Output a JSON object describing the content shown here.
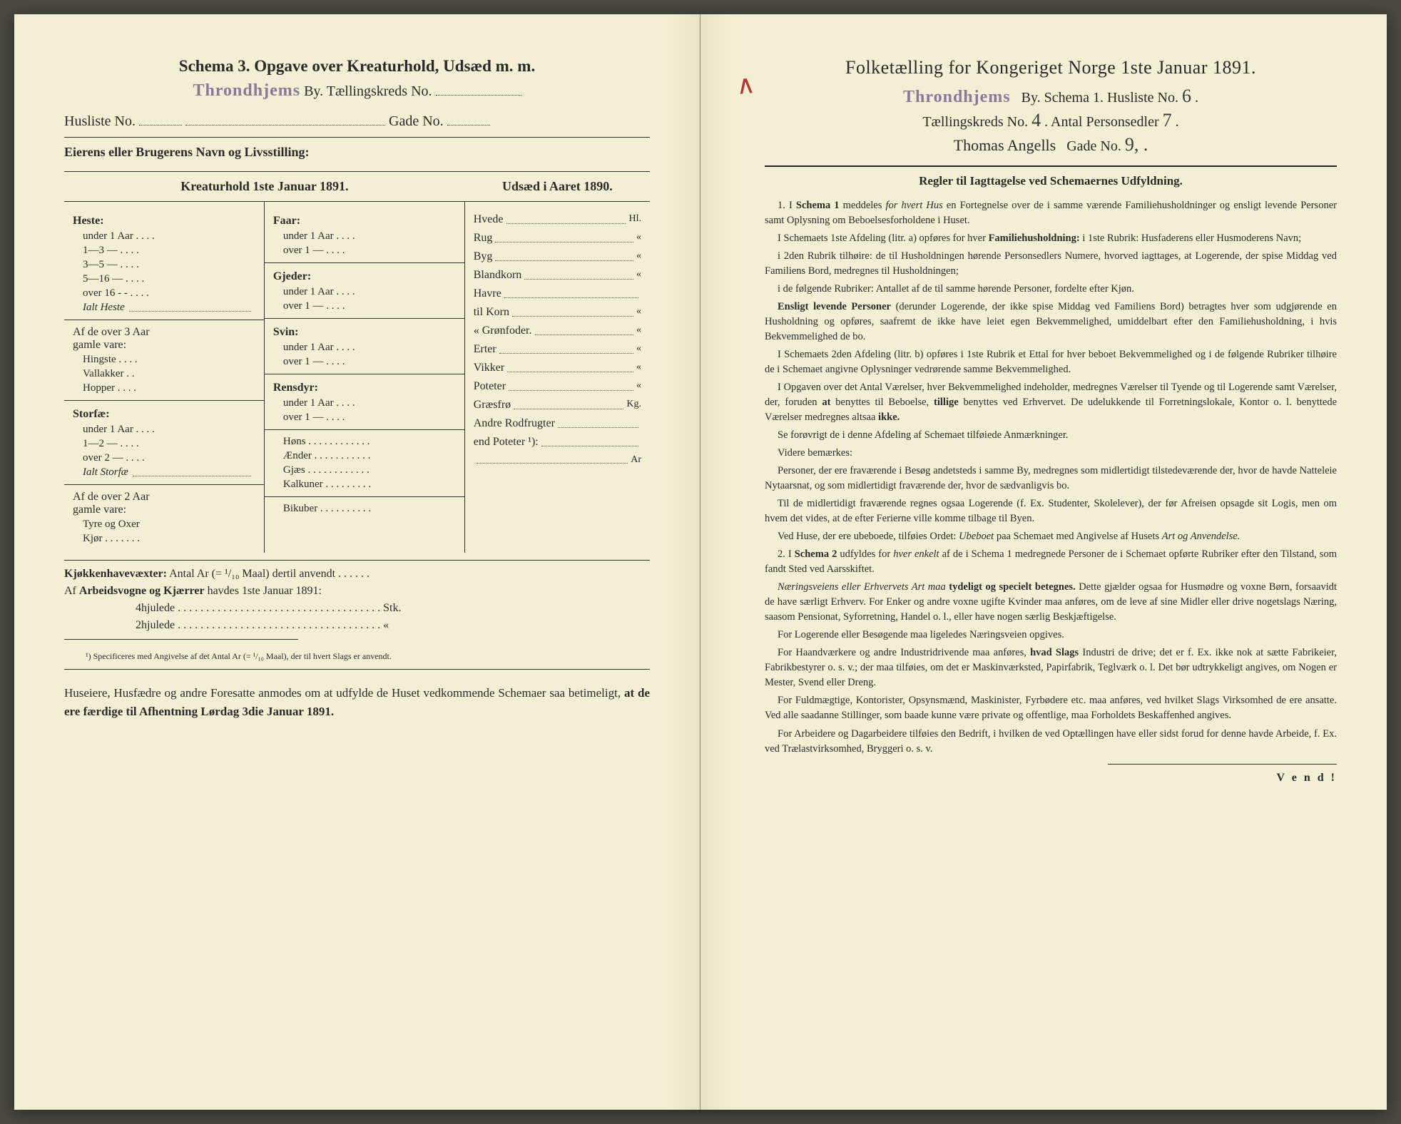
{
  "left": {
    "title": "Schema 3.   Opgave over Kreaturhold, Udsæd m. m.",
    "stamp": "Throndhjems",
    "by_label": "By.  Tællingskreds No.",
    "husliste_label": "Husliste No.",
    "gade_label": "Gade No.",
    "owner": "Eierens eller Brugerens Navn og Livsstilling:",
    "head_kreatur": "Kreaturhold 1ste Januar 1891.",
    "head_udsaed": "Udsæd i Aaret 1890.",
    "col1": {
      "heste": "Heste:",
      "heste_items": [
        "under 1 Aar . . . .",
        "1—3  —  . . . .",
        "3—5  —  . . . .",
        "5—16 —  . . . .",
        "over 16 - -  . . . ."
      ],
      "ialt_heste": "Ialt Heste",
      "af3aar": "Af de over 3 Aar",
      "gamle": "gamle vare:",
      "gamle_items": [
        "Hingste . . . .",
        "Vallakker . .",
        "Hopper . . . ."
      ],
      "storfae": "Storfæ:",
      "storfae_items": [
        "under 1 Aar . . . .",
        "1—2  —  . . . .",
        "over 2  —  . . . ."
      ],
      "ialt_storfae": "Ialt Storfæ",
      "af2aar": "Af de over 2 Aar",
      "gamle2": "gamle vare:",
      "gamle2_items": [
        "Tyre og Oxer",
        "Kjør . . . . . . ."
      ]
    },
    "col2": {
      "faar": "Faar:",
      "faar_items": [
        "under 1 Aar . . . .",
        "over 1  —  . . . ."
      ],
      "gjeder": "Gjeder:",
      "gjeder_items": [
        "under 1 Aar . . . .",
        "over 1  —  . . . ."
      ],
      "svin": "Svin:",
      "svin_items": [
        "under 1 Aar . . . .",
        "over 1  —  . . . ."
      ],
      "rensdyr": "Rensdyr:",
      "rensdyr_items": [
        "under 1 Aar . . . .",
        "over 1  —  . . . ."
      ],
      "hons": "Høns . . . . . . . . . . . .",
      "aender": "Ænder . . . . . . . . . . .",
      "gjaes": "Gjæs . . . . . . . . . . . .",
      "kalkuner": "Kalkuner . . . . . . . . .",
      "bikuber": "Bikuber . . . . . . . . . ."
    },
    "col3": {
      "items": [
        {
          "l": "Hvede",
          "u": "Hl."
        },
        {
          "l": "Rug",
          "u": "«"
        },
        {
          "l": "Byg",
          "u": "«"
        },
        {
          "l": "Blandkorn",
          "u": "«"
        },
        {
          "l": "Havre",
          "u": ""
        },
        {
          "l": "    til Korn",
          "u": "«"
        },
        {
          "l": "    «  Grønfoder.",
          "u": "«"
        },
        {
          "l": "Erter",
          "u": "«"
        },
        {
          "l": "Vikker",
          "u": "«"
        },
        {
          "l": "Poteter",
          "u": "«"
        },
        {
          "l": "Græsfrø",
          "u": "Kg."
        },
        {
          "l": "Andre Rodfrugter",
          "u": ""
        },
        {
          "l": "   end Poteter ¹):",
          "u": ""
        },
        {
          "l": "",
          "u": "Ar"
        }
      ]
    },
    "kjokken": "Kjøkkenhavevæxter:  Antal Ar (= ¹/₁₀ Maal) dertil anvendt . . . . . .",
    "arbeids": "Af Arbeidsvogne og Kjærrer havdes 1ste Januar 1891:",
    "hjul4": "4hjulede . . . . . . . . . . . . . . . . . . . . . . . . . . . . . . . . . . . . Stk.",
    "hjul2": "2hjulede . . . . . . . . . . . . . . . . . . . . . . . . . . . . . . . . . . . .  «",
    "footnote": "¹) Specificeres med Angivelse af det Antal Ar (= ¹/₁₀ Maal), der til hvert Slags er anvendt.",
    "final1": "Huseiere, Husfædre og andre Foresatte anmodes om at udfylde de Huset vedkommende Schemaer saa betimeligt, ",
    "final2": "at de ere færdige til Afhentning Lørdag 3die Januar 1891."
  },
  "right": {
    "red_mark": "∧",
    "title": "Folketælling for Kongeriget Norge 1ste Januar 1891.",
    "stamp": "Throndhjems",
    "line1_a": "By.    Schema 1.    Husliste No.",
    "line1_hw": "6",
    "line2_a": "Tællingskreds No.",
    "line2_hw1": "4",
    "line2_b": ".    Antal Personsedler",
    "line2_hw2": "7",
    "line3_hw": "Thomas Angells",
    "line3_a": "Gade No.",
    "line3_hw2": "9, .",
    "rules_title": "Regler til Iagttagelse ved Schemaernes Udfyldning.",
    "paras": [
      "1. I <b>Schema 1</b> meddeles <i>for hvert Hus</i> en Fortegnelse over de i samme værende Familiehusholdninger og ensligt levende Personer samt Oplysning om Beboelsesforholdene i Huset.",
      "I Schemaets 1ste Afdeling (litr. a) opføres for hver <b>Familiehusholdning:</b> i 1ste Rubrik: Husfaderens eller Husmoderens Navn;",
      "i 2den Rubrik tilhøire: de til Husholdningen hørende Personsedlers Numere, hvorved iagttages, at Logerende, der spise Middag ved Familiens Bord, medregnes til Husholdningen;",
      "i de følgende Rubriker: Antallet af de til samme hørende Personer, fordelte efter Kjøn.",
      "<b>Ensligt levende Personer</b> (derunder Logerende, der ikke spise Middag ved Familiens Bord) betragtes hver som udgjørende en Husholdning og opføres, saafremt de ikke have leiet egen Bekvemmelighed, umiddelbart efter den Familiehusholdning, i hvis Bekvemmelighed de bo.",
      "I Schemaets 2den Afdeling (litr. b) opføres i 1ste Rubrik et Ettal for hver beboet Bekvemmelighed og i de følgende Rubriker tilhøire de i Schemaet angivne Oplysninger vedrørende samme Bekvemmelighed.",
      "I Opgaven over det Antal Værelser, hver Bekvemmelighed indeholder, medregnes Værelser til Tyende og til Logerende samt Værelser, der, foruden <b>at</b> benyttes til Beboelse, <b>tillige</b> benyttes ved Erhvervet. De udelukkende til Forretningslokale, Kontor o. l. benyttede Værelser medregnes altsaa <b>ikke.</b>",
      "Se forøvrigt de i denne Afdeling af Schemaet tilføiede Anmærkninger.",
      "Videre bemærkes:",
      "Personer, der ere fraværende i Besøg andetsteds i samme By, medregnes som midlertidigt tilstedeværende der, hvor de havde Natteleie Nytaarsnat, og som midlertidigt fraværende der, hvor de sædvanligvis bo.",
      "Til de midlertidigt fraværende regnes ogsaa Logerende (f. Ex. Studenter, Skolelever), der før Afreisen opsagde sit Logis, men om hvem det vides, at de efter Ferierne ville komme tilbage til Byen.",
      "Ved Huse, der ere ubeboede, tilføies Ordet: <i>Ubeboet</i> paa Schemaet med Angivelse af Husets <i>Art og Anvendelse.</i>",
      "2. I <b>Schema 2</b> udfyldes for <i>hver enkelt</i> af de i Schema 1 medregnede Personer de i Schemaet opførte Rubriker efter den Tilstand, som fandt Sted ved Aarsskiftet.",
      "<i>Næringsveiens eller Erhvervets Art maa</i> <b>tydeligt og specielt betegnes.</b> Dette gjælder ogsaa for Husmødre og voxne Børn, forsaavidt de have særligt Erhverv. For Enker og andre voxne ugifte Kvinder maa anføres, om de leve af sine Midler eller drive nogetslags Næring, saasom Pensionat, Syforretning, Handel o. l., eller have nogen særlig Beskjæftigelse.",
      "For Logerende eller Besøgende maa ligeledes Næringsveien opgives.",
      "For Haandværkere og andre Industridrivende maa anføres, <b>hvad Slags</b> Industri de drive; det er f. Ex. ikke nok at sætte Fabrikeier, Fabrikbestyrer o. s. v.; der maa tilføies, om det er Maskinværksted, Papirfabrik, Teglværk o. l.  Det bør udtrykkeligt angives, om Nogen er Mester, Svend eller Dreng.",
      "For Fuldmægtige, Kontorister, Opsynsmænd, Maskinister, Fyrbødere etc. maa anføres, ved hvilket Slags Virksomhed de ere ansatte. Ved alle saadanne Stillinger, som baade kunne være private og offentlige, maa Forholdets Beskaffenhed angives.",
      "For Arbeidere og Dagarbeidere tilføies den Bedrift, i hvilken de ved Optællingen have eller sidst forud for denne havde Arbeide, f. Ex. ved Trælastvirksomhed, Bryggeri o. s. v."
    ],
    "vend": "V e n d !"
  }
}
